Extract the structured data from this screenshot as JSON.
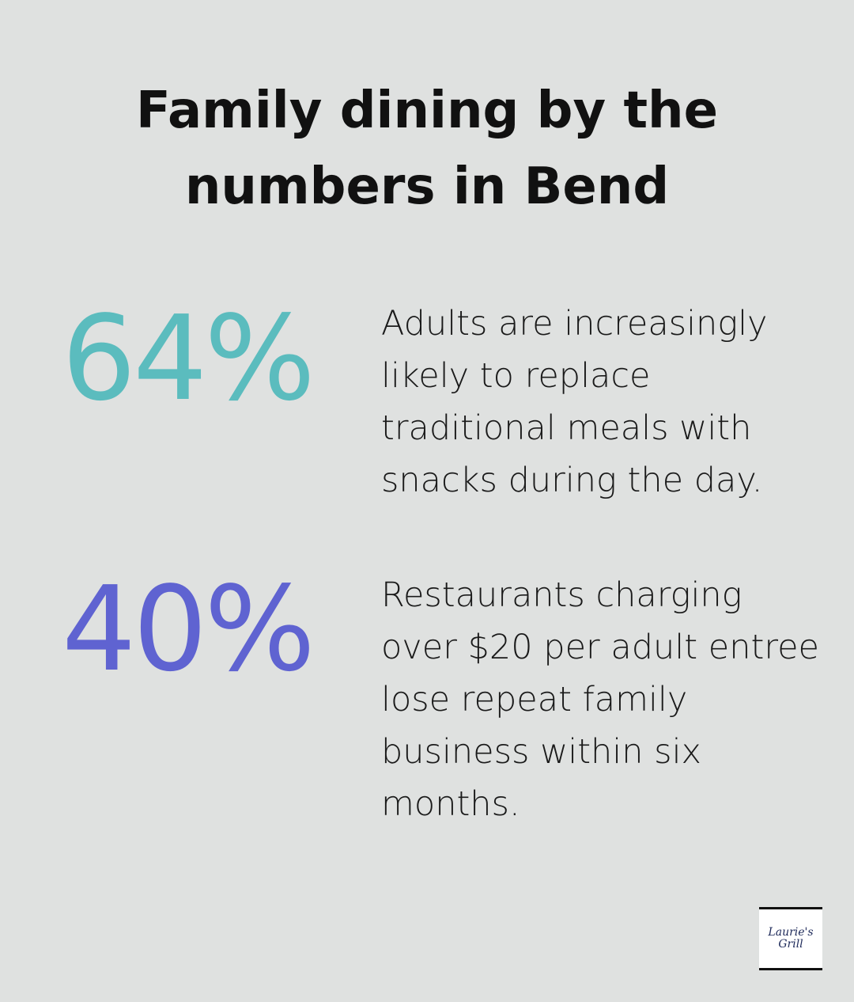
{
  "title": {
    "line1": "Family dining by the",
    "line2": "numbers in Bend"
  },
  "stats": [
    {
      "value": "64%",
      "color": "#5bbcbe",
      "description": "Adults are increasingly likely to replace traditional meals with snacks during the day."
    },
    {
      "value": "40%",
      "color": "#5f63d1",
      "description": "Restaurants charging over $20 per adult entree lose repeat family business within six months."
    }
  ],
  "logo": {
    "line1": "Laurie's",
    "line2": "Grill"
  },
  "colors": {
    "background": "#dfe1e0"
  }
}
